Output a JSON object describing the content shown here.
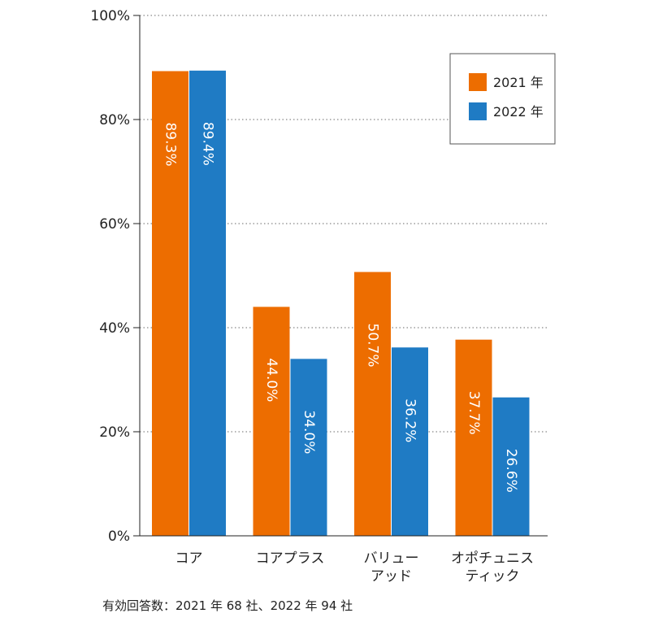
{
  "chart_data": {
    "type": "bar",
    "categories": [
      [
        "コア"
      ],
      [
        "コアプラス"
      ],
      [
        "バリュー",
        "アッド"
      ],
      [
        "オポチュニス",
        "ティック"
      ]
    ],
    "series": [
      {
        "name": "2021 年",
        "color": "#ED6D00",
        "values": [
          89.3,
          44.0,
          50.7,
          37.7
        ],
        "labels": [
          "89.3%",
          "44.0%",
          "50.7%",
          "37.7%"
        ]
      },
      {
        "name": "2022 年",
        "color": "#1F7BC4",
        "values": [
          89.4,
          34.0,
          36.2,
          26.6
        ],
        "labels": [
          "89.4%",
          "34.0%",
          "36.2%",
          "26.6%"
        ]
      }
    ],
    "ylim": [
      0,
      100
    ],
    "yticks": [
      0,
      20,
      40,
      60,
      80,
      100
    ],
    "ytick_labels": [
      "0%",
      "20%",
      "40%",
      "60%",
      "80%",
      "100%"
    ],
    "grid": true,
    "legend": "top-right"
  },
  "footnote": "有効回答数：2021 年 68 社、2022 年 94 社"
}
